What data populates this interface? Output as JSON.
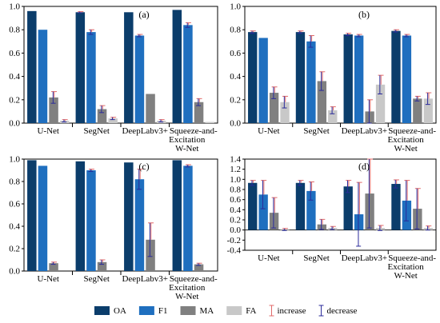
{
  "colors": {
    "OA": "#0b3d6b",
    "F1": "#1f6fbf",
    "MA": "#808080",
    "FA": "#c8c8c8",
    "increase": "#e06a6a",
    "decrease": "#2a2a9a"
  },
  "legend": {
    "items": [
      {
        "key": "OA",
        "label": "OA",
        "kind": "swatch"
      },
      {
        "key": "F1",
        "label": "F1",
        "kind": "swatch"
      },
      {
        "key": "MA",
        "label": "MA",
        "kind": "swatch"
      },
      {
        "key": "FA",
        "label": "FA",
        "kind": "swatch"
      },
      {
        "key": "increase",
        "label": "increase",
        "kind": "errorbar"
      },
      {
        "key": "decrease",
        "label": "decrease",
        "kind": "errorbar"
      }
    ]
  },
  "chart_data": [
    {
      "type": "bar",
      "panel_label": "(a)",
      "categories": [
        "U-Net",
        "SegNet",
        "DeepLabv3+",
        "Squeeze-and-Excitation W-Net"
      ],
      "ylim": [
        0,
        1.0
      ],
      "yticks": [
        "0.0",
        "0.2",
        "0.4",
        "0.6",
        "0.8",
        "1.0"
      ],
      "series": [
        {
          "name": "OA",
          "values": [
            0.96,
            0.95,
            0.95,
            0.97
          ],
          "increase": [
            0,
            0.005,
            0,
            0
          ],
          "decrease": [
            0,
            0.005,
            0,
            0
          ]
        },
        {
          "name": "F1",
          "values": [
            0.8,
            0.78,
            0.75,
            0.84
          ],
          "increase": [
            0,
            0.02,
            0.01,
            0.02
          ],
          "decrease": [
            0,
            0.02,
            0.01,
            0.02
          ]
        },
        {
          "name": "MA",
          "values": [
            0.22,
            0.12,
            0.25,
            0.18
          ],
          "increase": [
            0.05,
            0.03,
            0,
            0.03
          ],
          "decrease": [
            0.05,
            0.03,
            0,
            0.03
          ]
        },
        {
          "name": "FA",
          "values": [
            0.02,
            0.04,
            0.02,
            0.01
          ],
          "increase": [
            0.01,
            0.01,
            0.01,
            0
          ],
          "decrease": [
            0.01,
            0.01,
            0.01,
            0
          ]
        }
      ]
    },
    {
      "type": "bar",
      "panel_label": "(b)",
      "categories": [
        "U-Net",
        "SegNet",
        "DeepLabv3+",
        "Squeeze-and-Excitation W-Net"
      ],
      "ylim": [
        0,
        1.0
      ],
      "yticks": [
        "0.0",
        "0.2",
        "0.4",
        "0.6",
        "0.8",
        "1.0"
      ],
      "series": [
        {
          "name": "OA",
          "values": [
            0.78,
            0.78,
            0.76,
            0.79
          ],
          "increase": [
            0.01,
            0.01,
            0.01,
            0.01
          ],
          "decrease": [
            0.01,
            0.01,
            0.01,
            0.01
          ]
        },
        {
          "name": "F1",
          "values": [
            0.73,
            0.7,
            0.75,
            0.75
          ],
          "increase": [
            0,
            0.05,
            0.01,
            0.01
          ],
          "decrease": [
            0,
            0.05,
            0.01,
            0.01
          ]
        },
        {
          "name": "MA",
          "values": [
            0.26,
            0.36,
            0.1,
            0.21
          ],
          "increase": [
            0.05,
            0.08,
            0.1,
            0.02
          ],
          "decrease": [
            0.05,
            0.08,
            0.1,
            0.02
          ]
        },
        {
          "name": "FA",
          "values": [
            0.18,
            0.11,
            0.33,
            0.21
          ],
          "increase": [
            0.05,
            0.03,
            0.08,
            0.05
          ],
          "decrease": [
            0.05,
            0.03,
            0.08,
            0.05
          ]
        }
      ]
    },
    {
      "type": "bar",
      "panel_label": "(c)",
      "categories": [
        "U-Net",
        "SegNet",
        "DeepLabv3+",
        "Squeeze-and-Excitation W-Net"
      ],
      "ylim": [
        0,
        1.0
      ],
      "yticks": [
        "0.0",
        "0.2",
        "0.4",
        "0.6",
        "0.8",
        "1.0"
      ],
      "series": [
        {
          "name": "OA",
          "values": [
            0.99,
            0.98,
            0.97,
            0.99
          ],
          "increase": [
            0,
            0,
            0,
            0
          ],
          "decrease": [
            0,
            0,
            0,
            0
          ]
        },
        {
          "name": "F1",
          "values": [
            0.94,
            0.9,
            0.82,
            0.94
          ],
          "increase": [
            0,
            0.01,
            0.09,
            0.01
          ],
          "decrease": [
            0,
            0.01,
            0.09,
            0.01
          ]
        },
        {
          "name": "MA",
          "values": [
            0.07,
            0.08,
            0.28,
            0.06
          ],
          "increase": [
            0.01,
            0.02,
            0.15,
            0.01
          ],
          "decrease": [
            0.01,
            0.02,
            0.15,
            0.01
          ]
        },
        {
          "name": "FA",
          "values": [
            0,
            0,
            0,
            0
          ],
          "increase": [
            0,
            0,
            0,
            0
          ],
          "decrease": [
            0,
            0,
            0,
            0
          ]
        }
      ]
    },
    {
      "type": "bar",
      "panel_label": "(d)",
      "categories": [
        "U-Net",
        "SegNet",
        "DeepLabv3+",
        "Squeeze-and-Excitation W-Net"
      ],
      "ylim": [
        -0.4,
        1.4
      ],
      "yticks": [
        "-0.4",
        "-0.2",
        "0.0",
        "0.2",
        "0.4",
        "0.6",
        "0.8",
        "1.0",
        "1.2",
        "1.4"
      ],
      "series": [
        {
          "name": "OA",
          "values": [
            0.93,
            0.93,
            0.86,
            0.91
          ],
          "increase": [
            0.05,
            0.05,
            0.12,
            0.08
          ],
          "decrease": [
            0.05,
            0.05,
            0.12,
            0.08
          ]
        },
        {
          "name": "F1",
          "values": [
            0.7,
            0.77,
            0.31,
            0.58
          ],
          "increase": [
            0.28,
            0.18,
            0.63,
            0.4
          ],
          "decrease": [
            0.28,
            0.18,
            0.63,
            0.4
          ]
        },
        {
          "name": "MA",
          "values": [
            0.34,
            0.11,
            0.72,
            0.42
          ],
          "increase": [
            0.3,
            0.1,
            0.68,
            0.4
          ],
          "decrease": [
            0.3,
            0.1,
            0.68,
            0.4
          ]
        },
        {
          "name": "FA",
          "values": [
            0.01,
            0.04,
            0.04,
            0.04
          ],
          "increase": [
            0.02,
            0.03,
            0.05,
            0.04
          ],
          "decrease": [
            0.02,
            0.03,
            0.05,
            0.04
          ]
        }
      ]
    }
  ]
}
